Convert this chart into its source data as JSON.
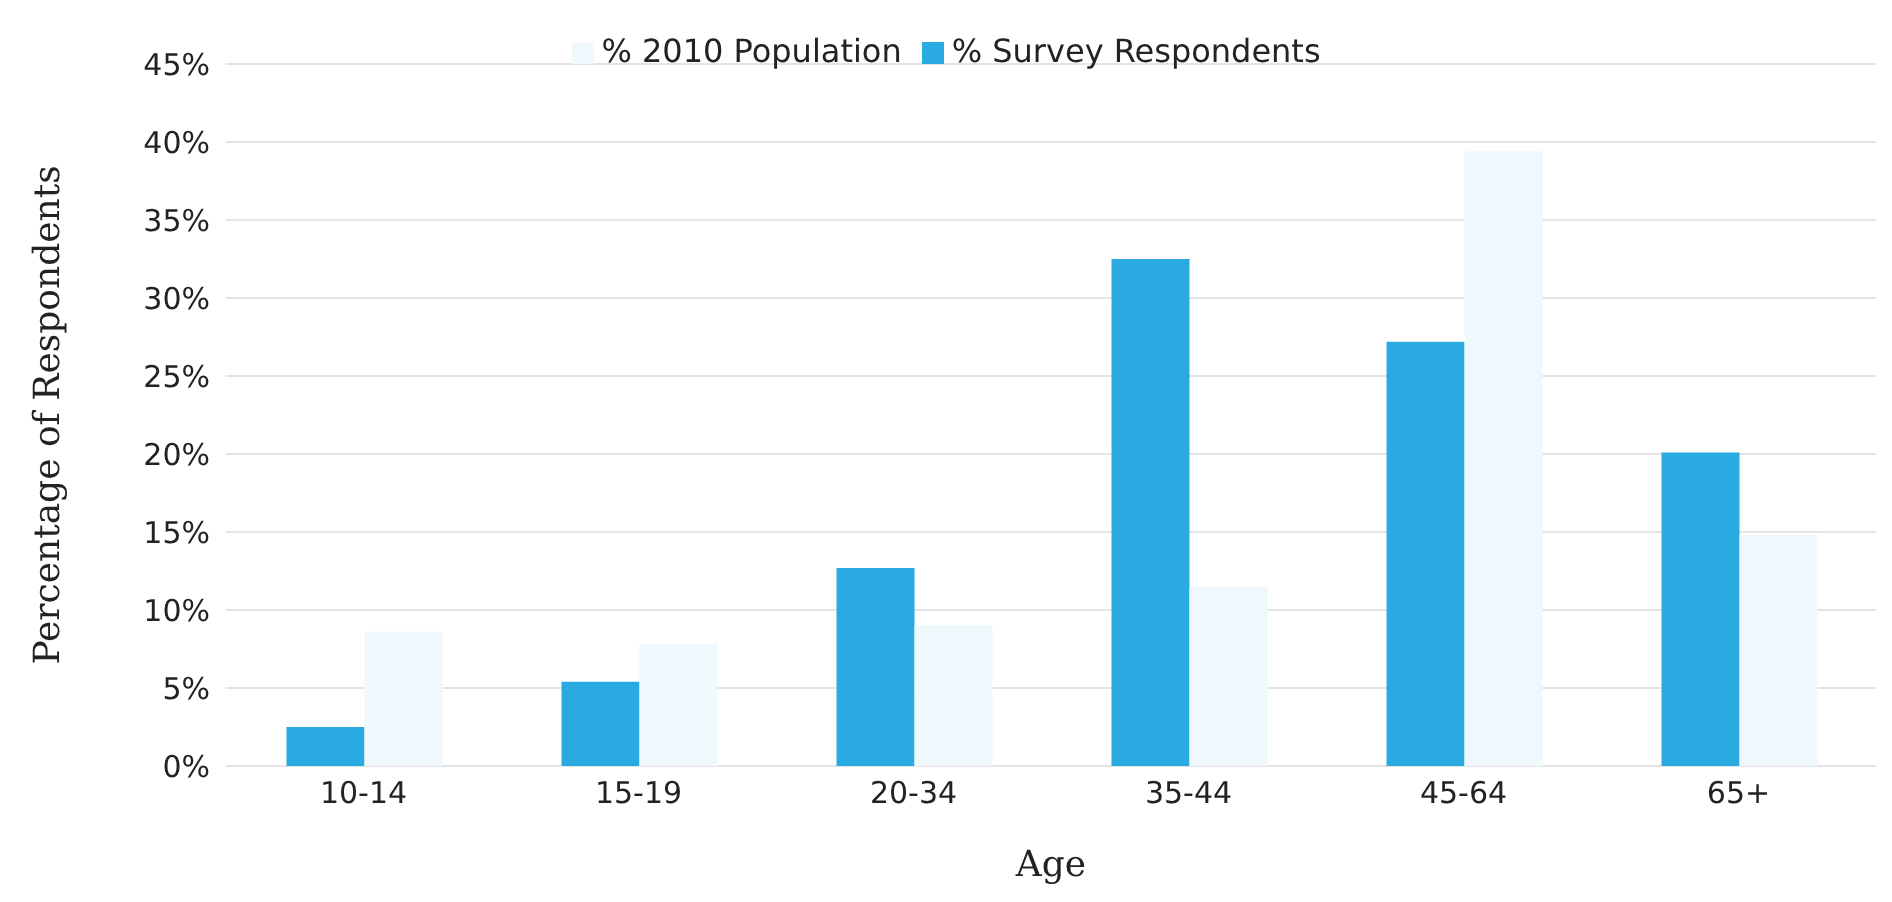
{
  "chart_data": {
    "type": "bar",
    "xlabel": "Age",
    "ylabel": "Percentage of Respondents",
    "categories": [
      "10-14",
      "15-19",
      "20-34",
      "35-44",
      "45-64",
      "65+"
    ],
    "series": [
      {
        "name": "% Survey Respondents",
        "color": "#29abe2",
        "values": [
          2.5,
          5.4,
          12.7,
          32.5,
          27.2,
          20.1
        ]
      },
      {
        "name": "% 2010 Population",
        "color": "#eef8fd",
        "values": [
          8.6,
          7.8,
          9.0,
          11.5,
          39.4,
          14.8
        ]
      }
    ],
    "ylim": [
      0,
      45
    ],
    "yticks": [
      {
        "value": 0,
        "label": "0%"
      },
      {
        "value": 5,
        "label": "5%"
      },
      {
        "value": 10,
        "label": "10%"
      },
      {
        "value": 15,
        "label": "15%"
      },
      {
        "value": 20,
        "label": "20%"
      },
      {
        "value": 25,
        "label": "25%"
      },
      {
        "value": 30,
        "label": "30%"
      },
      {
        "value": 35,
        "label": "35%"
      },
      {
        "value": 40,
        "label": "40%"
      },
      {
        "value": 45,
        "label": "45%"
      }
    ],
    "grid": "y",
    "legend": "top"
  }
}
